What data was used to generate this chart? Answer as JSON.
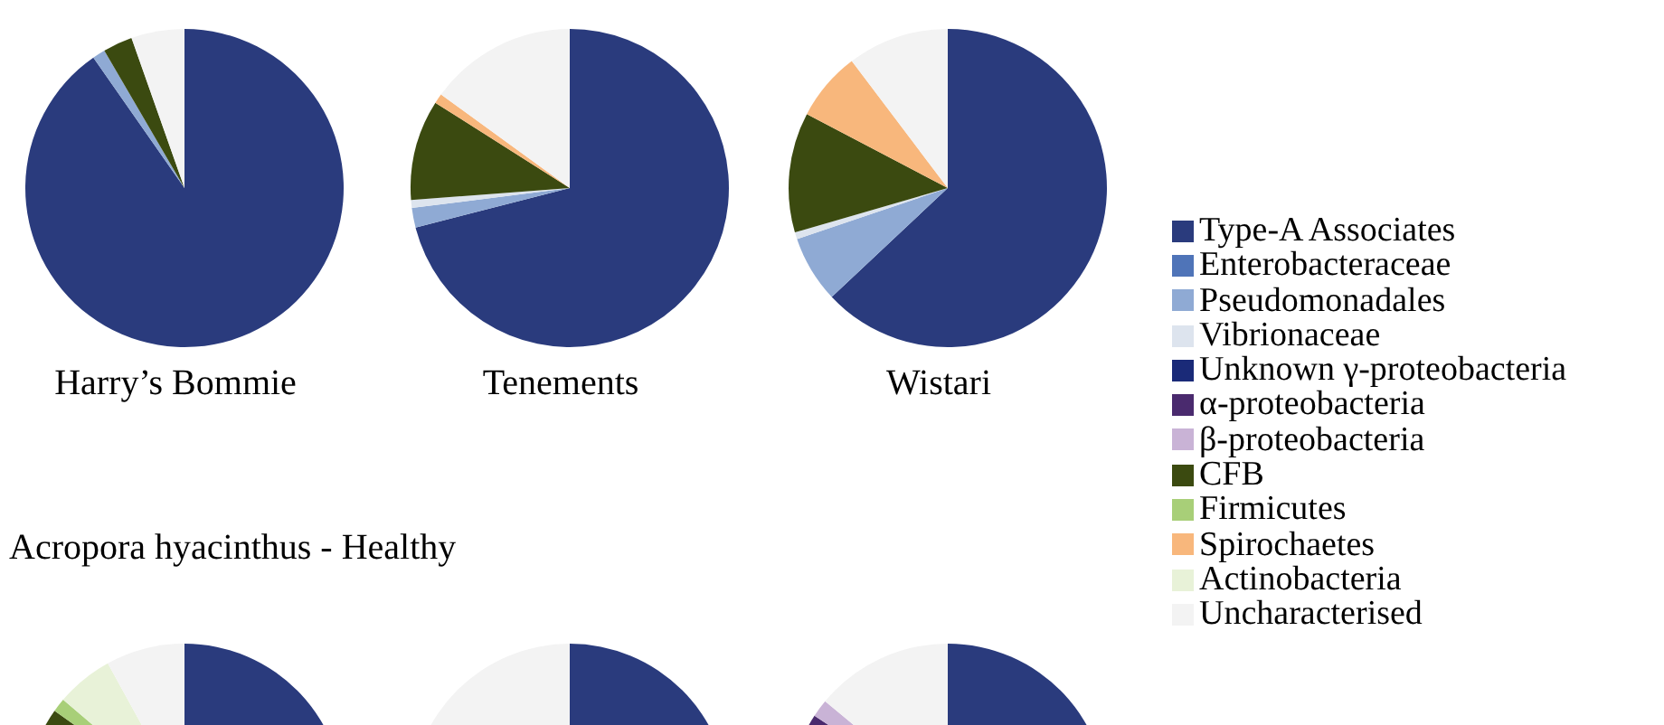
{
  "chart_data": [
    {
      "type": "pie",
      "title": "Harry’s Bommie",
      "categories": [
        null,
        null,
        null,
        null,
        null,
        null,
        null,
        null,
        null,
        null,
        null,
        null
      ],
      "values": [
        90.3,
        0,
        1.3,
        0,
        0,
        0,
        0,
        3,
        0,
        0,
        0,
        5.4
      ],
      "colors": [
        "#2a3b7d",
        "#4f74b8",
        "#8faad4",
        "#dde4ee",
        "#1a2a78",
        "#4a2a6e",
        "#c9b3d6",
        "#3b4a10",
        "#a8cf78",
        "#f8b77c",
        "#e8f2d8",
        "#f3f3f3"
      ]
    },
    {
      "type": "pie",
      "title": "Tenements",
      "categories": [
        null,
        null,
        null,
        null,
        null,
        null,
        null,
        null,
        null,
        null,
        null,
        null
      ],
      "values": [
        71,
        0,
        2,
        0.8,
        0,
        0,
        0,
        10.2,
        0,
        1,
        0,
        15
      ],
      "colors": [
        "#2a3b7d",
        "#4f74b8",
        "#8faad4",
        "#dde4ee",
        "#1a2a78",
        "#4a2a6e",
        "#c9b3d6",
        "#3b4a10",
        "#a8cf78",
        "#f8b77c",
        "#e8f2d8",
        "#f3f3f3"
      ]
    },
    {
      "type": "pie",
      "title": "Wistari",
      "legend": "right",
      "categories": [
        "Type-A Associates",
        "Enterobacteraceae",
        "Pseudomonadales",
        "Vibrionaceae",
        "Unknown γ-proteobacteria",
        "α-proteobacteria",
        "β-proteobacteria",
        "CFB",
        "Firmicutes",
        "Spirochaetes",
        "Actinobacteria",
        "Uncharacterised"
      ],
      "values": [
        63,
        0,
        6.8,
        0.7,
        0,
        0,
        0,
        12.2,
        0,
        7,
        0,
        10.3
      ],
      "colors": [
        "#2a3b7d",
        "#4f74b8",
        "#8faad4",
        "#dde4ee",
        "#1a2a78",
        "#4a2a6e",
        "#c9b3d6",
        "#3b4a10",
        "#a8cf78",
        "#f8b77c",
        "#e8f2d8",
        "#f3f3f3"
      ]
    },
    {
      "type": "pie",
      "annotations": [
        "Acropora hyacinthus - Healthy"
      ],
      "categories": [
        null,
        null,
        null,
        null,
        null,
        null,
        null,
        null,
        null,
        null,
        null,
        null
      ],
      "values": [
        78,
        0,
        0,
        0,
        0,
        0,
        0,
        6.8,
        1.4,
        0,
        5.8,
        8
      ],
      "colors": [
        "#2a3b7d",
        "#4f74b8",
        "#8faad4",
        "#dde4ee",
        "#1a2a78",
        "#4a2a6e",
        "#c9b3d6",
        "#3b4a10",
        "#a8cf78",
        "#f8b77c",
        "#e8f2d8",
        "#f3f3f3"
      ]
    },
    {
      "type": "pie",
      "categories": [
        null,
        null,
        null,
        null,
        null,
        null,
        null,
        null,
        null,
        null,
        null,
        null
      ],
      "values": [
        75,
        0,
        0,
        0,
        0,
        0,
        0,
        0,
        0,
        0,
        0,
        25
      ],
      "colors": [
        "#2a3b7d",
        "#4f74b8",
        "#8faad4",
        "#dde4ee",
        "#1a2a78",
        "#4a2a6e",
        "#c9b3d6",
        "#3b4a10",
        "#a8cf78",
        "#f8b77c",
        "#e8f2d8",
        "#f3f3f3"
      ]
    },
    {
      "type": "pie",
      "categories": [
        null,
        null,
        null,
        null,
        null,
        null,
        null,
        null,
        null,
        null,
        null,
        null
      ],
      "values": [
        78.2,
        0,
        0,
        0,
        0,
        6,
        1.8,
        0,
        0,
        0,
        0,
        14
      ],
      "colors": [
        "#2a3b7d",
        "#4f74b8",
        "#8faad4",
        "#dde4ee",
        "#1a2a78",
        "#4a2a6e",
        "#c9b3d6",
        "#3b4a10",
        "#a8cf78",
        "#f8b77c",
        "#e8f2d8",
        "#f3f3f3"
      ]
    }
  ]
}
